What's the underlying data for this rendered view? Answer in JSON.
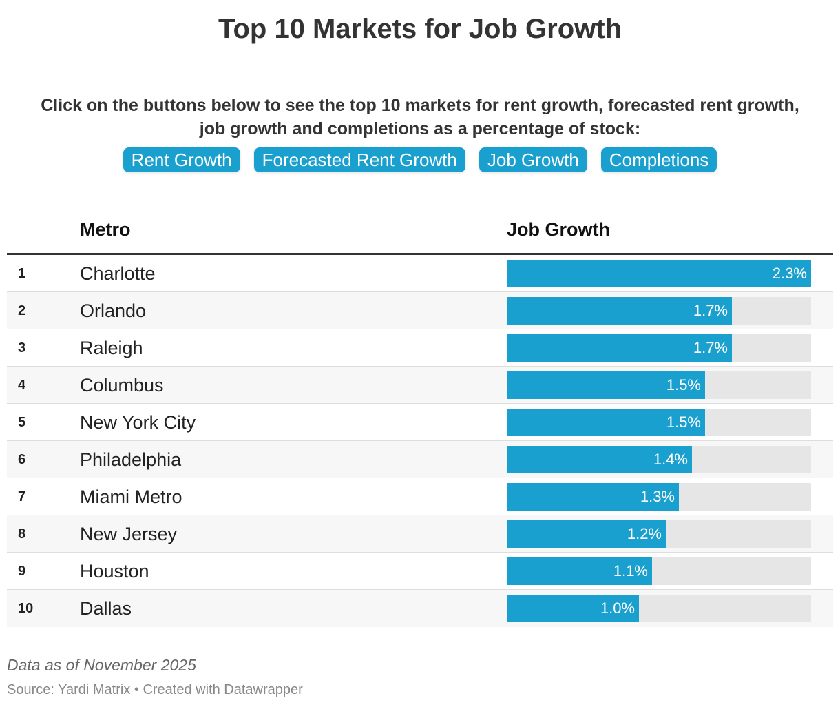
{
  "title": "Top 10 Markets for Job Growth",
  "intro_line1": "Click on the buttons below to see the top 10 markets for rent growth, forecasted rent growth,",
  "intro_line2": "job growth and completions as a percentage of stock:",
  "buttons": [
    "Rent Growth",
    "Forecasted Rent Growth",
    "Job Growth",
    "Completions"
  ],
  "accent_color": "#1aa0ce",
  "chart_data": {
    "type": "table",
    "columns": [
      "",
      "Metro",
      "Job Growth"
    ],
    "max_value": 2.3,
    "unit": "%",
    "rows": [
      {
        "rank": "1",
        "metro": "Charlotte",
        "value": 2.3,
        "label": "2.3%"
      },
      {
        "rank": "2",
        "metro": "Orlando",
        "value": 1.7,
        "label": "1.7%"
      },
      {
        "rank": "3",
        "metro": "Raleigh",
        "value": 1.7,
        "label": "1.7%"
      },
      {
        "rank": "4",
        "metro": "Columbus",
        "value": 1.5,
        "label": "1.5%"
      },
      {
        "rank": "5",
        "metro": "New York City",
        "value": 1.5,
        "label": "1.5%"
      },
      {
        "rank": "6",
        "metro": "Philadelphia",
        "value": 1.4,
        "label": "1.4%"
      },
      {
        "rank": "7",
        "metro": "Miami Metro",
        "value": 1.3,
        "label": "1.3%"
      },
      {
        "rank": "8",
        "metro": "New Jersey",
        "value": 1.2,
        "label": "1.2%"
      },
      {
        "rank": "9",
        "metro": "Houston",
        "value": 1.1,
        "label": "1.1%"
      },
      {
        "rank": "10",
        "metro": "Dallas",
        "value": 1.0,
        "label": "1.0%"
      }
    ]
  },
  "note": "Data as of November 2025",
  "source": "Source: Yardi Matrix • Created with Datawrapper"
}
